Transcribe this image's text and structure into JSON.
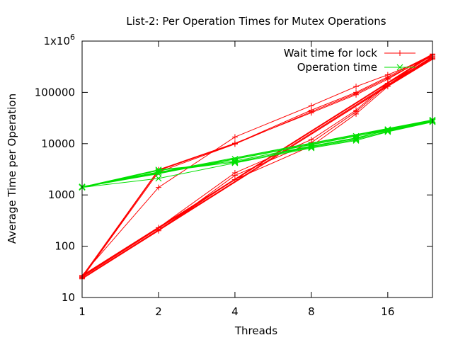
{
  "chart_data": {
    "type": "line",
    "title": "List-2: Per Operation Times for Mutex Operations",
    "xlabel": "Threads",
    "ylabel": "Average Time per Operation",
    "x_scale": "log2",
    "y_scale": "log10",
    "xlim": [
      1,
      24
    ],
    "ylim": [
      10,
      1000000
    ],
    "x_ticks": [
      {
        "value": 1,
        "label": "1"
      },
      {
        "value": 2,
        "label": "2"
      },
      {
        "value": 4,
        "label": "4"
      },
      {
        "value": 8,
        "label": "8"
      },
      {
        "value": 16,
        "label": "16"
      }
    ],
    "y_ticks": [
      {
        "value": 10,
        "label": "10"
      },
      {
        "value": 100,
        "label": "100"
      },
      {
        "value": 1000,
        "label": "1000"
      },
      {
        "value": 10000,
        "label": "10000"
      },
      {
        "value": 100000,
        "label": "100000"
      },
      {
        "value": 1000000,
        "label": "1x10",
        "sup": "6"
      }
    ],
    "legend_position": "top-right",
    "grid": false,
    "series": [
      {
        "name": "Wait time for lock",
        "color": "#ff0000",
        "marker": "plus",
        "x": [
          1,
          2,
          4,
          8,
          12,
          16,
          24,
          1,
          2,
          4,
          8,
          12,
          16,
          24,
          1,
          2,
          4,
          8,
          12,
          16,
          24,
          1,
          2,
          4,
          8,
          12,
          16,
          24,
          1,
          2,
          4,
          8,
          12,
          16,
          24,
          1,
          2,
          4,
          8,
          12,
          16,
          24,
          1,
          2,
          4,
          8,
          12,
          16,
          24
        ],
        "y": [
          25,
          3000,
          10000,
          45000,
          100000,
          200000,
          550000,
          27,
          1400,
          13500,
          55000,
          130000,
          220000,
          500000,
          24,
          2800,
          9800,
          42000,
          95000,
          190000,
          530000,
          26,
          3100,
          10200,
          40000,
          90000,
          180000,
          560000,
          25,
          230,
          2700,
          12000,
          45000,
          150000,
          480000,
          23,
          200,
          2400,
          10500,
          42000,
          140000,
          460000,
          24,
          210,
          2000,
          9000,
          38000,
          130000,
          440000
        ]
      },
      {
        "name": "Operation time",
        "color": "#00e000",
        "marker": "x",
        "x": [
          1,
          2,
          4,
          8,
          12,
          16,
          24,
          1,
          2,
          4,
          8,
          12,
          16,
          24,
          1,
          2,
          4,
          8,
          12,
          16,
          24,
          1,
          2,
          4,
          8,
          12,
          16,
          24,
          1,
          2,
          4,
          8,
          12,
          16,
          24
        ],
        "y": [
          1400,
          3000,
          4600,
          9000,
          13000,
          18000,
          28000,
          1450,
          2800,
          4400,
          8500,
          12000,
          17500,
          27000,
          1400,
          2100,
          4200,
          8200,
          11500,
          17000,
          26500,
          1420,
          2600,
          5000,
          9500,
          14000,
          19000,
          29000,
          1430,
          3100,
          4300,
          8800,
          12500,
          18500,
          27500
        ]
      }
    ]
  }
}
